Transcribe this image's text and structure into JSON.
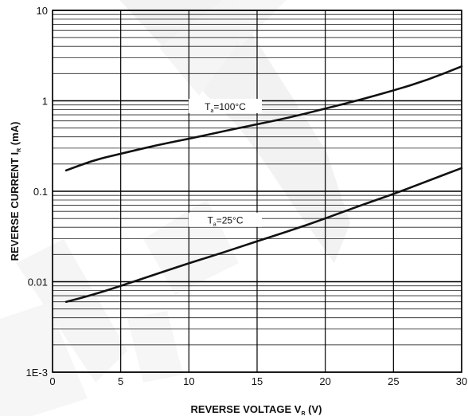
{
  "chart_data": {
    "type": "line",
    "title": "",
    "y_scale": "log",
    "grid": true,
    "ylim": [
      0.001,
      10
    ],
    "xlim": [
      0,
      30
    ],
    "x_ticks": [
      "0",
      "5",
      "10",
      "15",
      "20",
      "25",
      "30"
    ],
    "x_tick_values": [
      0,
      5,
      10,
      15,
      20,
      25,
      30
    ],
    "y_ticks": [
      "1E-3",
      "0.01",
      "0.1",
      "1",
      "10"
    ],
    "y_tick_values": [
      0.001,
      0.01,
      0.1,
      1,
      10
    ],
    "xlabel": {
      "main": "REVERSE VOLTAGE  V",
      "sub": "R",
      "unit": " (V)"
    },
    "ylabel": {
      "main": "REVERSE CURRENT  I",
      "sub": "R",
      "unit": " (mA)"
    },
    "series": [
      {
        "name": {
          "prefix": "T",
          "sub": "a",
          "suffix": "=100°C"
        },
        "color": "#111111",
        "x": [
          1,
          3,
          5,
          7.5,
          10,
          12.5,
          15,
          17.5,
          20,
          22.5,
          25,
          27.5,
          30
        ],
        "y": [
          0.17,
          0.22,
          0.26,
          0.32,
          0.38,
          0.46,
          0.55,
          0.66,
          0.82,
          1.02,
          1.3,
          1.7,
          2.4
        ]
      },
      {
        "name": {
          "prefix": "T",
          "sub": "a",
          "suffix": "=25°C"
        },
        "color": "#111111",
        "x": [
          1,
          3,
          5,
          7.5,
          10,
          12.5,
          15,
          17.5,
          20,
          22.5,
          25,
          27.5,
          30
        ],
        "y": [
          0.006,
          0.0072,
          0.009,
          0.012,
          0.016,
          0.021,
          0.028,
          0.037,
          0.05,
          0.069,
          0.093,
          0.13,
          0.18
        ]
      }
    ]
  }
}
